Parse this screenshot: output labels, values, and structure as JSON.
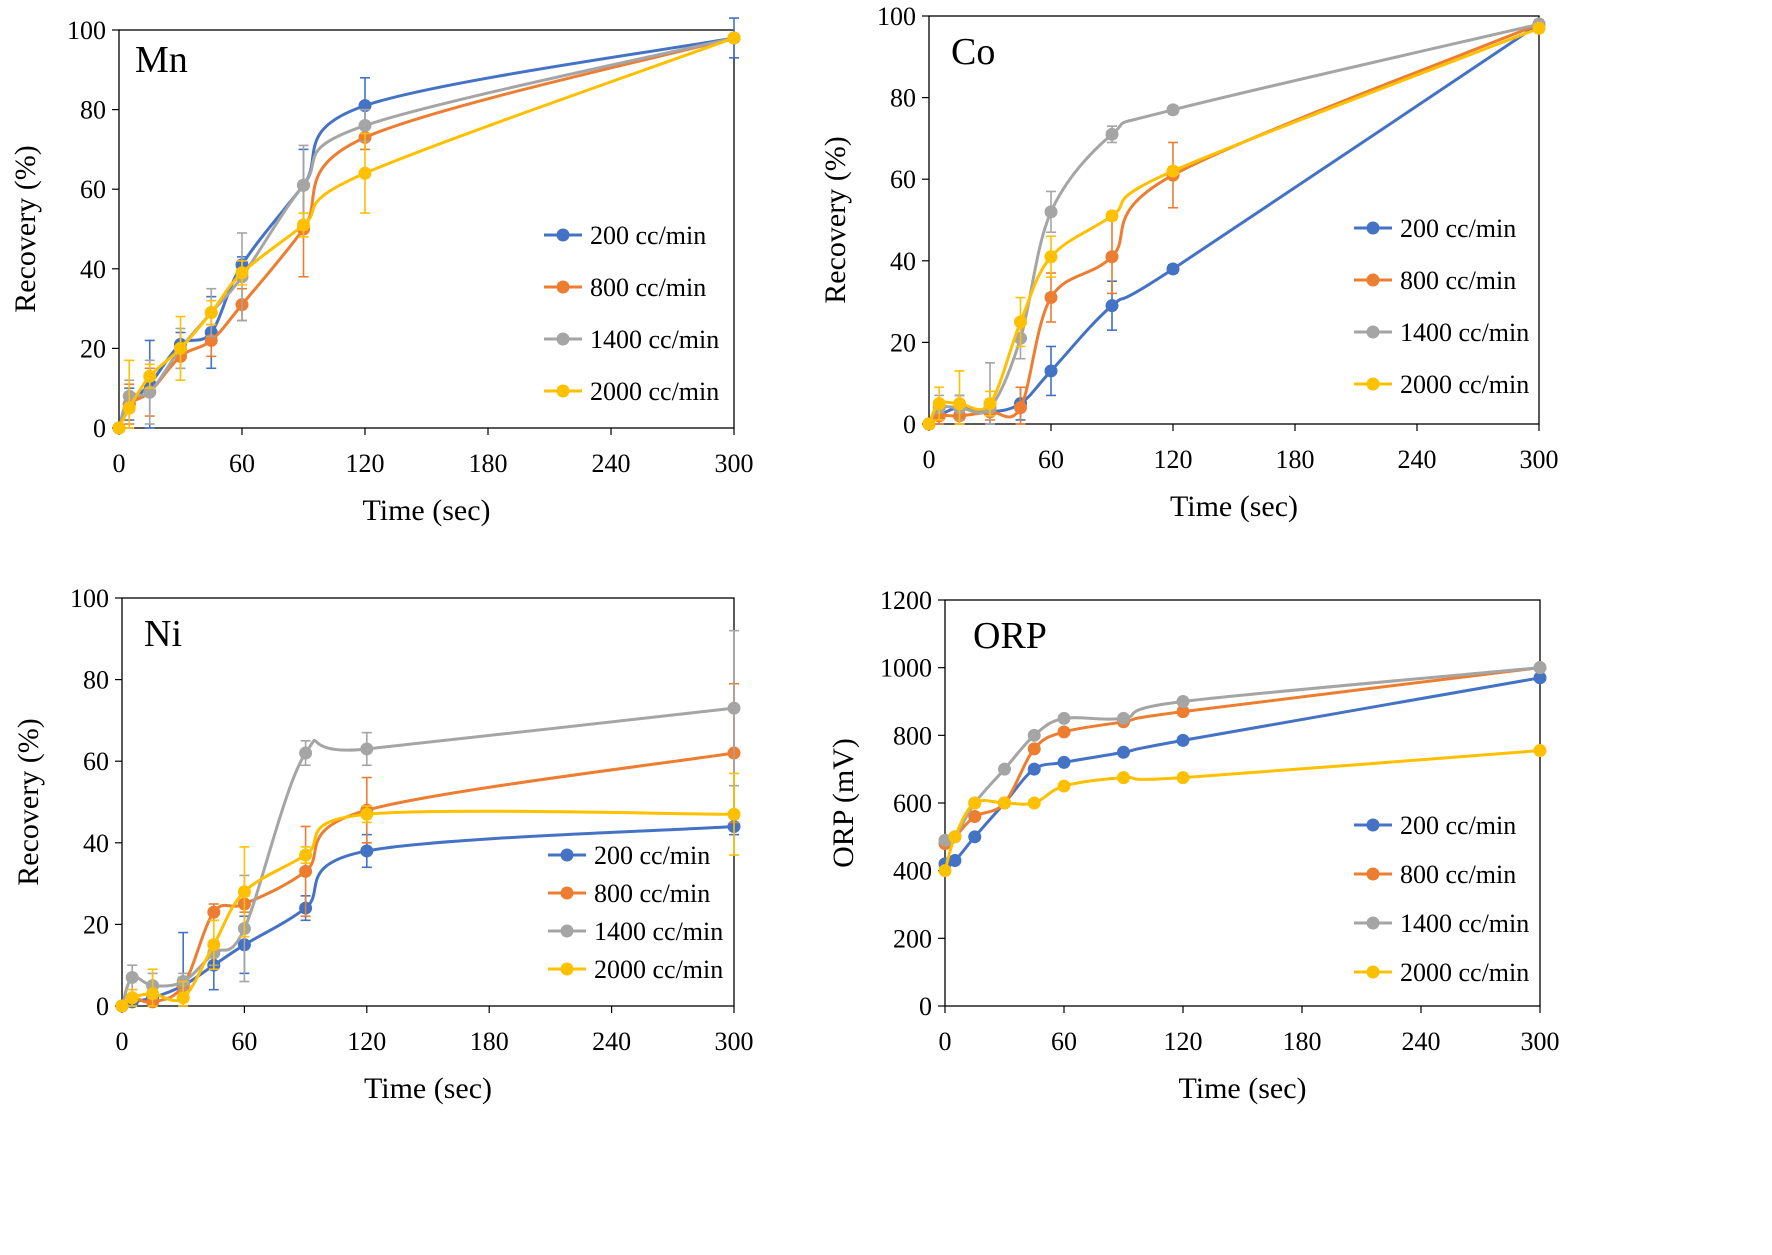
{
  "colors": {
    "200 cc/min": "#4472C4",
    "800 cc/min": "#ED7D31",
    "1400 cc/min": "#A5A5A5",
    "2000 cc/min": "#FFC000"
  },
  "chart_data": [
    {
      "type": "line",
      "title": "Mn",
      "xlabel": "Time (sec)",
      "ylabel": "Recovery (%)",
      "xlim": [
        0,
        300
      ],
      "ylim": [
        0,
        100
      ],
      "xticks": [
        "0",
        "60",
        "120",
        "180",
        "240",
        "300"
      ],
      "yticks": [
        "0",
        "20",
        "40",
        "60",
        "80",
        "100"
      ],
      "x": [
        0,
        5,
        15,
        30,
        45,
        60,
        90,
        120,
        300
      ],
      "legend_position": "right-middle",
      "series": [
        {
          "name": "200 cc/min",
          "values": [
            0,
            6,
            11,
            21,
            24,
            41,
            61,
            81,
            98
          ],
          "errors": [
            0,
            4,
            11,
            3,
            9,
            2,
            9,
            7,
            5
          ]
        },
        {
          "name": "800 cc/min",
          "values": [
            0,
            6,
            9,
            18,
            22,
            31,
            50,
            73,
            98
          ],
          "errors": [
            0,
            5,
            6,
            3,
            4,
            4,
            12,
            3,
            1
          ]
        },
        {
          "name": "1400 cc/min",
          "values": [
            0,
            8,
            9,
            20,
            29,
            38,
            61,
            76,
            98
          ],
          "errors": [
            0,
            4,
            8,
            5,
            6,
            11,
            10,
            4,
            1
          ]
        },
        {
          "name": "2000 cc/min",
          "values": [
            0,
            5,
            13,
            20,
            29,
            39,
            51,
            64,
            98
          ],
          "errors": [
            0,
            12,
            3,
            8,
            3,
            3,
            3,
            10,
            1
          ]
        }
      ]
    },
    {
      "type": "line",
      "title": "Co",
      "xlabel": "Time (sec)",
      "ylabel": "Recovery (%)",
      "xlim": [
        0,
        300
      ],
      "ylim": [
        0,
        100
      ],
      "xticks": [
        "0",
        "60",
        "120",
        "180",
        "240",
        "300"
      ],
      "yticks": [
        "0",
        "20",
        "40",
        "60",
        "80",
        "100"
      ],
      "x": [
        0,
        5,
        15,
        30,
        45,
        60,
        90,
        120,
        300
      ],
      "legend_position": "right-middle",
      "series": [
        {
          "name": "200 cc/min",
          "values": [
            0,
            2,
            4,
            3,
            5,
            13,
            29,
            38,
            98
          ],
          "errors": [
            0,
            2,
            3,
            3,
            4,
            6,
            6,
            1,
            1
          ]
        },
        {
          "name": "800 cc/min",
          "values": [
            0,
            2,
            2,
            3,
            4,
            31,
            41,
            61,
            98
          ],
          "errors": [
            0,
            2,
            2,
            2,
            5,
            6,
            9,
            8,
            1
          ]
        },
        {
          "name": "1400 cc/min",
          "values": [
            0,
            4,
            4,
            4,
            21,
            52,
            71,
            77,
            98
          ],
          "errors": [
            0,
            3,
            3,
            11,
            5,
            5,
            2,
            1,
            1
          ]
        },
        {
          "name": "2000 cc/min",
          "values": [
            0,
            5,
            5,
            5,
            25,
            41,
            51,
            62,
            97
          ],
          "errors": [
            0,
            4,
            8,
            3,
            6,
            5,
            1,
            1,
            1
          ]
        }
      ]
    },
    {
      "type": "line",
      "title": "Ni",
      "xlabel": "Time (sec)",
      "ylabel": "Recovery (%)",
      "xlim": [
        0,
        300
      ],
      "ylim": [
        0,
        100
      ],
      "xticks": [
        "0",
        "60",
        "120",
        "180",
        "240",
        "300"
      ],
      "yticks": [
        "0",
        "20",
        "40",
        "60",
        "80",
        "100"
      ],
      "x": [
        0,
        5,
        15,
        30,
        45,
        60,
        90,
        120,
        300
      ],
      "legend_position": "right-middle",
      "series": [
        {
          "name": "200 cc/min",
          "values": [
            0,
            1,
            2,
            5,
            10,
            15,
            24,
            38,
            44
          ],
          "errors": [
            0,
            1,
            2,
            13,
            6,
            7,
            3,
            4,
            2
          ]
        },
        {
          "name": "800 cc/min",
          "values": [
            0,
            2,
            1,
            5,
            23,
            25,
            33,
            48,
            62
          ],
          "errors": [
            0,
            2,
            1,
            2,
            2,
            2,
            11,
            8,
            17
          ]
        },
        {
          "name": "1400 cc/min",
          "values": [
            0,
            7,
            5,
            6,
            13,
            19,
            62,
            63,
            73
          ],
          "errors": [
            0,
            3,
            3,
            2,
            3,
            13,
            3,
            4,
            19
          ]
        },
        {
          "name": "2000 cc/min",
          "values": [
            0,
            2,
            3,
            2,
            15,
            28,
            37,
            47,
            47
          ],
          "errors": [
            0,
            2,
            6,
            4,
            6,
            11,
            2,
            2,
            10
          ]
        }
      ]
    },
    {
      "type": "line",
      "title": "ORP",
      "xlabel": "Time (sec)",
      "ylabel": "ORP (mV)",
      "xlim": [
        0,
        300
      ],
      "ylim": [
        0,
        1200
      ],
      "xticks": [
        "0",
        "60",
        "120",
        "180",
        "240",
        "300"
      ],
      "yticks": [
        "0",
        "200",
        "400",
        "600",
        "800",
        "1000",
        "1200"
      ],
      "x": [
        0,
        5,
        15,
        30,
        45,
        60,
        90,
        120,
        300
      ],
      "legend_position": "right-bottom",
      "series": [
        {
          "name": "200 cc/min",
          "values": [
            420,
            430,
            500,
            600,
            700,
            720,
            750,
            785,
            970
          ]
        },
        {
          "name": "800 cc/min",
          "values": [
            480,
            500,
            560,
            600,
            760,
            810,
            840,
            870,
            1000
          ]
        },
        {
          "name": "1400 cc/min",
          "values": [
            490,
            500,
            600,
            700,
            800,
            850,
            850,
            900,
            1000
          ]
        },
        {
          "name": "2000 cc/min",
          "values": [
            400,
            500,
            600,
            600,
            600,
            650,
            675,
            675,
            755
          ]
        }
      ]
    }
  ]
}
